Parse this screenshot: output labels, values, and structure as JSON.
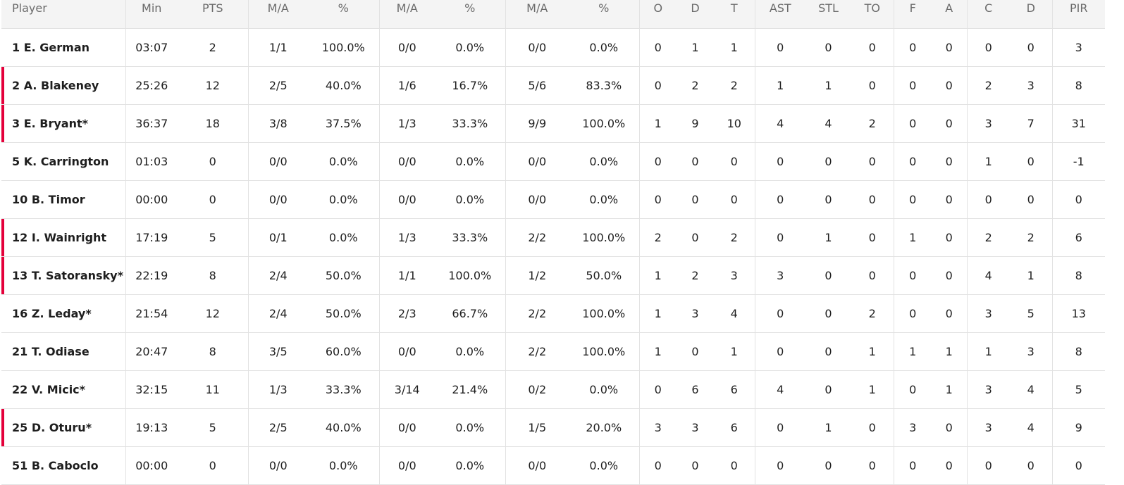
{
  "table": {
    "header": [
      "Player",
      "Min",
      "PTS",
      "M/A",
      "%",
      "M/A",
      "%",
      "M/A",
      "%",
      "O",
      "D",
      "T",
      "AST",
      "STL",
      "TO",
      "F",
      "A",
      "C",
      "D",
      "PIR"
    ],
    "rows": [
      [
        "1 E. German",
        "03:07",
        "2",
        "1/1",
        "100.0%",
        "0/0",
        "0.0%",
        "0/0",
        "0.0%",
        "0",
        "1",
        "1",
        "0",
        "0",
        "0",
        "0",
        "0",
        "0",
        "0",
        "3"
      ],
      [
        "2 A. Blakeney",
        "25:26",
        "12",
        "2/5",
        "40.0%",
        "1/6",
        "16.7%",
        "5/6",
        "83.3%",
        "0",
        "2",
        "2",
        "1",
        "1",
        "0",
        "0",
        "0",
        "2",
        "3",
        "8"
      ],
      [
        "3 E. Bryant*",
        "36:37",
        "18",
        "3/8",
        "37.5%",
        "1/3",
        "33.3%",
        "9/9",
        "100.0%",
        "1",
        "9",
        "10",
        "4",
        "4",
        "2",
        "0",
        "0",
        "3",
        "7",
        "31"
      ],
      [
        "5 K. Carrington",
        "01:03",
        "0",
        "0/0",
        "0.0%",
        "0/0",
        "0.0%",
        "0/0",
        "0.0%",
        "0",
        "0",
        "0",
        "0",
        "0",
        "0",
        "0",
        "0",
        "1",
        "0",
        "-1"
      ],
      [
        "10 B. Timor",
        "00:00",
        "0",
        "0/0",
        "0.0%",
        "0/0",
        "0.0%",
        "0/0",
        "0.0%",
        "0",
        "0",
        "0",
        "0",
        "0",
        "0",
        "0",
        "0",
        "0",
        "0",
        "0"
      ],
      [
        "12 I. Wainright",
        "17:19",
        "5",
        "0/1",
        "0.0%",
        "1/3",
        "33.3%",
        "2/2",
        "100.0%",
        "2",
        "0",
        "2",
        "0",
        "1",
        "0",
        "1",
        "0",
        "2",
        "2",
        "6"
      ],
      [
        "13 T. Satoransky*",
        "22:19",
        "8",
        "2/4",
        "50.0%",
        "1/1",
        "100.0%",
        "1/2",
        "50.0%",
        "1",
        "2",
        "3",
        "3",
        "0",
        "0",
        "0",
        "0",
        "4",
        "1",
        "8"
      ],
      [
        "16 Z. Leday*",
        "21:54",
        "12",
        "2/4",
        "50.0%",
        "2/3",
        "66.7%",
        "2/2",
        "100.0%",
        "1",
        "3",
        "4",
        "0",
        "0",
        "2",
        "0",
        "0",
        "3",
        "5",
        "13"
      ],
      [
        "21 T. Odiase",
        "20:47",
        "8",
        "3/5",
        "60.0%",
        "0/0",
        "0.0%",
        "2/2",
        "100.0%",
        "1",
        "0",
        "1",
        "0",
        "0",
        "1",
        "1",
        "1",
        "1",
        "3",
        "8"
      ],
      [
        "22 V. Micic*",
        "32:15",
        "11",
        "1/3",
        "33.3%",
        "3/14",
        "21.4%",
        "0/2",
        "0.0%",
        "0",
        "6",
        "6",
        "4",
        "0",
        "1",
        "0",
        "1",
        "3",
        "4",
        "5"
      ],
      [
        "25 D. Oturu*",
        "19:13",
        "5",
        "2/5",
        "40.0%",
        "0/0",
        "0.0%",
        "1/5",
        "20.0%",
        "3",
        "3",
        "6",
        "0",
        "1",
        "0",
        "3",
        "0",
        "3",
        "4",
        "9"
      ],
      [
        "51 B. Caboclo",
        "00:00",
        "0",
        "0/0",
        "0.0%",
        "0/0",
        "0.0%",
        "0/0",
        "0.0%",
        "0",
        "0",
        "0",
        "0",
        "0",
        "0",
        "0",
        "0",
        "0",
        "0",
        "0"
      ]
    ]
  }
}
